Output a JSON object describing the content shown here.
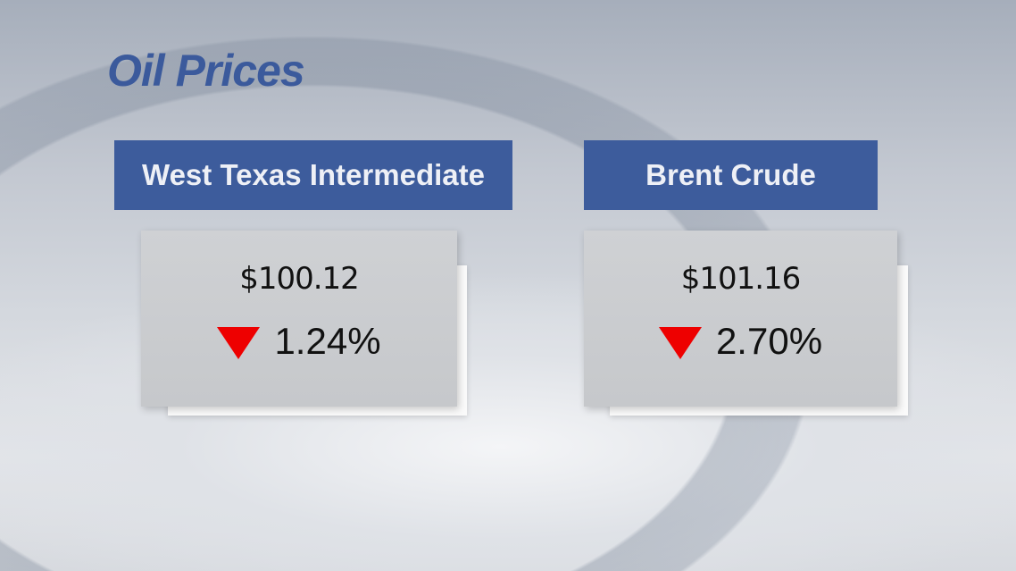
{
  "title": "Oil Prices",
  "colors": {
    "header_bg": "#3d5c9c",
    "title": "#3b5a9c",
    "down_arrow": "#ee0000"
  },
  "benchmarks": [
    {
      "name": "West Texas Intermediate",
      "price": "$100.12",
      "change": "1.24%",
      "direction": "down",
      "icon": "down-triangle-icon"
    },
    {
      "name": "Brent Crude",
      "price": "$101.16",
      "change": "2.70%",
      "direction": "down",
      "icon": "down-triangle-icon"
    }
  ]
}
